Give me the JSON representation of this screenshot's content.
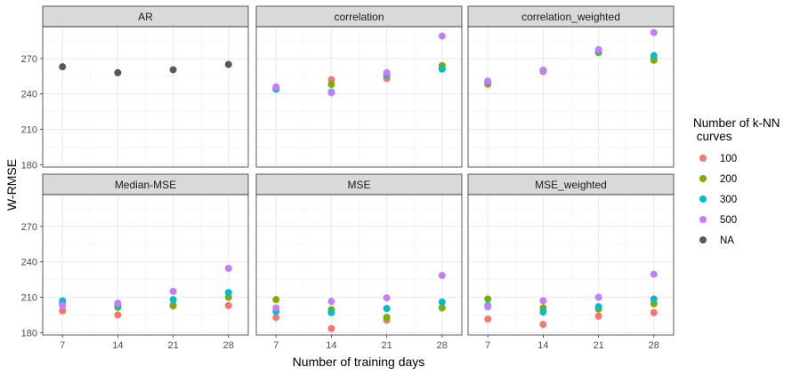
{
  "chart_data": {
    "type": "scatter",
    "xlabel": "Number of training days",
    "ylabel": "W-RMSE",
    "x_ticks": [
      7,
      14,
      21,
      28
    ],
    "xlim": [
      4.5,
      30.5
    ],
    "facet_rows": [
      {
        "yticks": [
          180,
          210,
          240,
          270
        ],
        "ylim": [
          178,
          297
        ]
      },
      {
        "yticks": [
          180,
          210,
          240,
          270
        ],
        "ylim": [
          178,
          297
        ]
      }
    ],
    "legend": {
      "title_line1": "Number of k-NN",
      "title_line2": " curves",
      "position": "right",
      "entries": [
        {
          "label": "100",
          "color": "#F8766D"
        },
        {
          "label": "200",
          "color": "#7CAE00"
        },
        {
          "label": "300",
          "color": "#00BFC4"
        },
        {
          "label": "500",
          "color": "#C77CFF"
        },
        {
          "label": "NA",
          "color": "#595959"
        }
      ]
    },
    "panels": [
      {
        "title": "AR",
        "series": [
          {
            "name": "NA",
            "x": [
              7,
              14,
              21,
              28
            ],
            "y": [
              263,
              258,
              260.5,
              265
            ]
          }
        ]
      },
      {
        "title": "correlation",
        "series": [
          {
            "name": "100",
            "x": [
              7,
              14,
              21,
              28
            ],
            "y": [
              245,
              252,
              253,
              262
            ]
          },
          {
            "name": "200",
            "x": [
              7,
              14,
              21,
              28
            ],
            "y": [
              244.5,
              248,
              256,
              264
            ]
          },
          {
            "name": "300",
            "x": [
              7,
              14,
              21,
              28
            ],
            "y": [
              244,
              241.5,
              256,
              261
            ]
          },
          {
            "name": "500",
            "x": [
              7,
              14,
              21,
              28
            ],
            "y": [
              246,
              241,
              258,
              289
            ]
          }
        ]
      },
      {
        "title": "correlation_weighted",
        "series": [
          {
            "name": "100",
            "x": [
              7,
              14,
              21,
              28
            ],
            "y": [
              248,
              259,
              275,
              270
            ]
          },
          {
            "name": "200",
            "x": [
              7,
              14,
              21,
              28
            ],
            "y": [
              249.5,
              259.5,
              275,
              268.5
            ]
          },
          {
            "name": "300",
            "x": [
              7,
              14,
              21,
              28
            ],
            "y": [
              250,
              260,
              276.5,
              272.5
            ]
          },
          {
            "name": "500",
            "x": [
              7,
              14,
              21,
              28
            ],
            "y": [
              251,
              260,
              277.5,
              292
            ]
          }
        ]
      },
      {
        "title": "Median-MSE",
        "series": [
          {
            "name": "100",
            "x": [
              7,
              14,
              21,
              28
            ],
            "y": [
              198.5,
              195,
              202.5,
              203
            ]
          },
          {
            "name": "200",
            "x": [
              7,
              14,
              21,
              28
            ],
            "y": [
              205,
              201.5,
              203.5,
              210
            ]
          },
          {
            "name": "300",
            "x": [
              7,
              14,
              21,
              28
            ],
            "y": [
              207,
              203,
              208,
              214
            ]
          },
          {
            "name": "500",
            "x": [
              7,
              14,
              21,
              28
            ],
            "y": [
              203,
              205,
              215,
              234.5
            ]
          }
        ]
      },
      {
        "title": "MSE",
        "series": [
          {
            "name": "100",
            "x": [
              7,
              14,
              21,
              28
            ],
            "y": [
              193,
              183.5,
              190.5,
              201
            ]
          },
          {
            "name": "200",
            "x": [
              7,
              14,
              21,
              28
            ],
            "y": [
              208,
              199.5,
              193,
              201
            ]
          },
          {
            "name": "300",
            "x": [
              7,
              14,
              21,
              28
            ],
            "y": [
              198,
              197,
              200.5,
              206
            ]
          },
          {
            "name": "500",
            "x": [
              7,
              14,
              21,
              28
            ],
            "y": [
              201,
              206.5,
              209.5,
              228.5
            ]
          }
        ]
      },
      {
        "title": "MSE_weighted",
        "series": [
          {
            "name": "100",
            "x": [
              7,
              14,
              21,
              28
            ],
            "y": [
              191.5,
              187,
              194,
              197
            ]
          },
          {
            "name": "200",
            "x": [
              7,
              14,
              21,
              28
            ],
            "y": [
              208.5,
              201,
              200,
              204.5
            ]
          },
          {
            "name": "300",
            "x": [
              7,
              14,
              21,
              28
            ],
            "y": [
              203,
              197.5,
              202,
              208.5
            ]
          },
          {
            "name": "500",
            "x": [
              7,
              14,
              21,
              28
            ],
            "y": [
              202,
              207,
              210,
              229.5
            ]
          }
        ]
      }
    ]
  }
}
